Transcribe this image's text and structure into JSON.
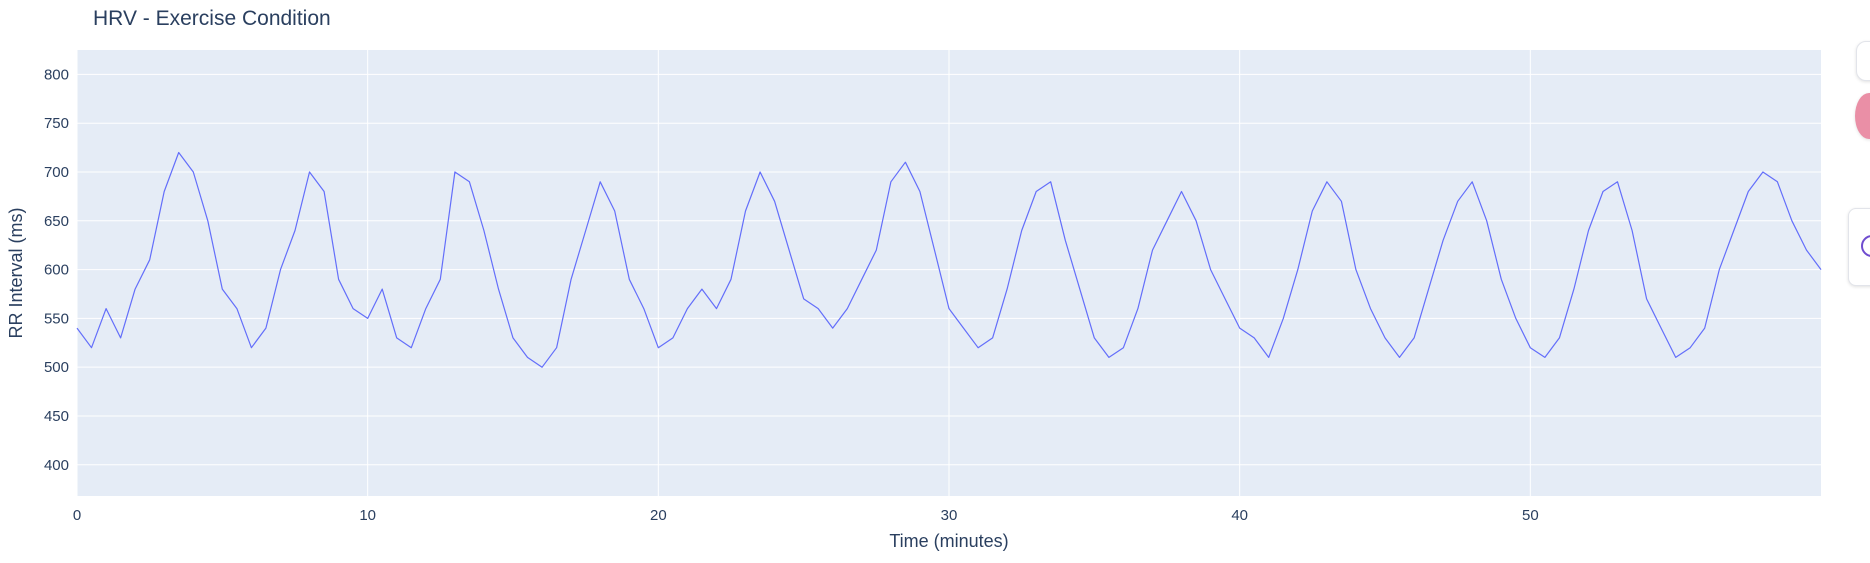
{
  "chart_data": {
    "type": "line",
    "title": "HRV - Exercise Condition",
    "xlabel": "Time (minutes)",
    "ylabel": "RR Interval (ms)",
    "xlim": [
      0,
      60
    ],
    "ylim": [
      368,
      825
    ],
    "x_ticks": [
      0,
      10,
      20,
      30,
      40,
      50
    ],
    "y_ticks": [
      400,
      450,
      500,
      550,
      600,
      650,
      700,
      750,
      800
    ],
    "grid": true,
    "legend": "none",
    "colors": {
      "line": "#636efa",
      "plot_bg": "#e5ecf6",
      "grid": "#ffffff",
      "text": "#2a3f5f"
    },
    "series": [
      {
        "x": [
          0,
          0.5,
          1,
          1.5,
          2,
          2.5,
          3,
          3.5,
          4,
          4.5,
          5,
          5.5,
          6,
          6.5,
          7,
          7.5,
          8,
          8.5,
          9,
          9.5,
          10,
          10.5,
          11,
          11.5,
          12,
          12.5,
          13,
          13.5,
          14,
          14.5,
          15,
          15.5,
          16,
          16.5,
          17,
          17.5,
          18,
          18.5,
          19,
          19.5,
          20,
          20.5,
          21,
          21.5,
          22,
          22.5,
          23,
          23.5,
          24,
          24.5,
          25,
          25.5,
          26,
          26.5,
          27,
          27.5,
          28,
          28.5,
          29,
          29.5,
          30,
          30.5,
          31,
          31.5,
          32,
          32.5,
          33,
          33.5,
          34,
          34.5,
          35,
          35.5,
          36,
          36.5,
          37,
          37.5,
          38,
          38.5,
          39,
          39.5,
          40,
          40.5,
          41,
          41.5,
          42,
          42.5,
          43,
          43.5,
          44,
          44.5,
          45,
          45.5,
          46,
          46.5,
          47,
          47.5,
          48,
          48.5,
          49,
          49.5,
          50,
          50.5,
          51,
          51.5,
          52,
          52.5,
          53,
          53.5,
          54,
          54.5,
          55,
          55.5,
          56,
          56.5,
          57,
          57.5,
          58,
          58.5,
          59,
          59.5,
          60
        ],
        "y": [
          540,
          520,
          560,
          530,
          580,
          610,
          680,
          720,
          700,
          650,
          580,
          560,
          520,
          540,
          600,
          640,
          700,
          680,
          590,
          560,
          550,
          580,
          530,
          520,
          560,
          590,
          700,
          690,
          640,
          580,
          530,
          510,
          500,
          520,
          590,
          640,
          690,
          660,
          590,
          560,
          520,
          530,
          560,
          580,
          560,
          590,
          660,
          700,
          670,
          620,
          570,
          560,
          540,
          560,
          590,
          620,
          690,
          710,
          680,
          620,
          560,
          540,
          520,
          530,
          580,
          640,
          680,
          690,
          630,
          580,
          530,
          510,
          520,
          560,
          620,
          650,
          680,
          650,
          600,
          570,
          540,
          530,
          510,
          550,
          600,
          660,
          690,
          670,
          600,
          560,
          530,
          510,
          530,
          580,
          630,
          670,
          690,
          650,
          590,
          550,
          520,
          510,
          530,
          580,
          640,
          680,
          690,
          640,
          570,
          540,
          510,
          520,
          540,
          600,
          640,
          680,
          700,
          690,
          650,
          620,
          600
        ]
      }
    ]
  }
}
